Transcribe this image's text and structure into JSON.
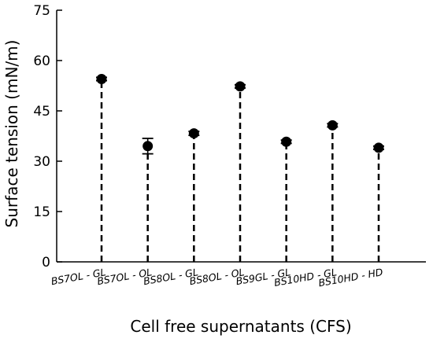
{
  "chart_data": {
    "type": "scatter",
    "style": "lollipop-dashed-stems-with-error-bars",
    "title": "",
    "xlabel": "Cell free supernatants (CFS)",
    "ylabel": "Surface tension (mN/m)",
    "ylim": [
      0,
      75
    ],
    "yticks": [
      0,
      15,
      30,
      45,
      60,
      75
    ],
    "grid": false,
    "legend": "none",
    "categories": [
      "BS7OL - GL",
      "BS7OL - OL",
      "BS8OL - GL",
      "BS8OL - OL",
      "BS9GL - GL",
      "BS10HD - GL",
      "BS10HD - HD"
    ],
    "series": [
      {
        "values": [
          54.5,
          34.5,
          38.3,
          52.3,
          35.8,
          40.7,
          34.0
        ],
        "errors": [
          0.5,
          2.3,
          0.6,
          0.5,
          0.5,
          0.5,
          0.5
        ]
      }
    ],
    "colors": {
      "marker": "#000000",
      "stem": "#000000",
      "axis": "#000000"
    }
  }
}
